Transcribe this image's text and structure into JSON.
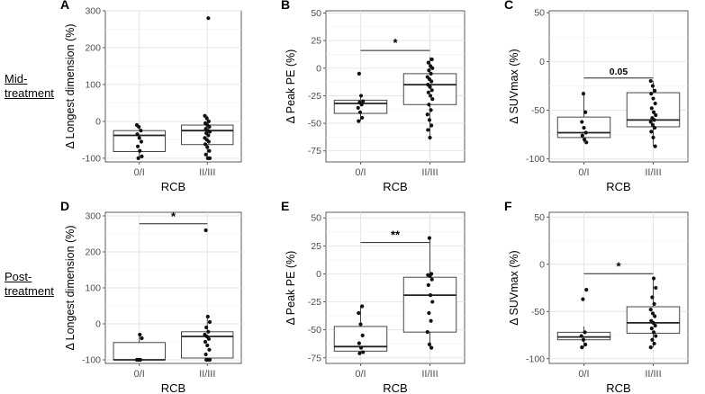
{
  "row_labels": {
    "mid_line1": "Mid-",
    "mid_line2": "treatment",
    "post_line1": "Post-",
    "post_line2": "treatment"
  },
  "chart_data": [
    {
      "id": "A",
      "type": "boxplot",
      "panel_label": "A",
      "ylabel": "Δ Longest dimension (%)",
      "xlabel": "RCB",
      "categories": [
        "0/I",
        "II/III"
      ],
      "ylim": [
        -110,
        300
      ],
      "yticks": [
        -100,
        0,
        100,
        200,
        300
      ],
      "boxes": [
        {
          "min": -100,
          "q1": -82,
          "median": -38,
          "q3": -25,
          "max": -10
        },
        {
          "min": -100,
          "q1": -63,
          "median": -25,
          "q3": -10,
          "max": 15
        }
      ],
      "points": [
        [
          -10,
          -15,
          -25,
          -35,
          -45,
          -55,
          -68,
          -80,
          -95,
          -100
        ],
        [
          280,
          15,
          8,
          0,
          -5,
          -10,
          -15,
          -20,
          -25,
          -28,
          -32,
          -38,
          -45,
          -50,
          -55,
          -62,
          -70,
          -80,
          -90,
          -100,
          -100
        ]
      ],
      "significance": null
    },
    {
      "id": "B",
      "type": "boxplot",
      "panel_label": "B",
      "ylabel": "Δ Peak PE (%)",
      "xlabel": "RCB",
      "categories": [
        "0/I",
        "II/III"
      ],
      "ylim": [
        -85,
        52
      ],
      "yticks": [
        -75,
        -50,
        -25,
        0,
        25,
        50
      ],
      "boxes": [
        {
          "min": -48,
          "q1": -41,
          "median": -32,
          "q3": -29,
          "max": -25
        },
        {
          "min": -63,
          "q1": -33,
          "median": -15,
          "q3": -5,
          "max": 10
        }
      ],
      "points": [
        [
          -5,
          -25,
          -30,
          -31,
          -33,
          -36,
          -40,
          -45,
          -48
        ],
        [
          8,
          5,
          2,
          0,
          -2,
          -5,
          -8,
          -10,
          -12,
          -15,
          -17,
          -20,
          -22,
          -25,
          -28,
          -33,
          -38,
          -42,
          -47,
          -52,
          -56,
          -63
        ]
      ],
      "significance": {
        "label": "*",
        "y": 16
      }
    },
    {
      "id": "C",
      "type": "boxplot",
      "panel_label": "C",
      "ylabel": "Δ SUVmax (%)",
      "xlabel": "RCB",
      "categories": [
        "0/I",
        "II/III"
      ],
      "ylim": [
        -103,
        52
      ],
      "yticks": [
        -100,
        -50,
        0,
        50
      ],
      "boxes": [
        {
          "min": -83,
          "q1": -78,
          "median": -73,
          "q3": -57,
          "max": -33
        },
        {
          "min": -87,
          "q1": -67,
          "median": -60,
          "q3": -32,
          "max": -20
        }
      ],
      "points": [
        [
          -33,
          -52,
          -62,
          -68,
          -73,
          -76,
          -80,
          -83
        ],
        [
          -20,
          -25,
          -30,
          -33,
          -38,
          -43,
          -48,
          -52,
          -55,
          -58,
          -60,
          -62,
          -65,
          -68,
          -72,
          -78,
          -87
        ]
      ],
      "significance": {
        "label": "0.05",
        "y": -17
      }
    },
    {
      "id": "D",
      "type": "boxplot",
      "panel_label": "D",
      "ylabel": "Δ Longest dimension (%)",
      "xlabel": "RCB",
      "categories": [
        "0/I",
        "II/III"
      ],
      "ylim": [
        -110,
        310
      ],
      "yticks": [
        -100,
        0,
        100,
        200,
        300
      ],
      "boxes": [
        {
          "min": -100,
          "q1": -100,
          "median": -100,
          "q3": -52,
          "max": -30
        },
        {
          "min": -100,
          "q1": -95,
          "median": -35,
          "q3": -22,
          "max": 20
        }
      ],
      "points": [
        [
          -30,
          -40,
          -100,
          -100,
          -100,
          -100
        ],
        [
          260,
          20,
          5,
          -10,
          -22,
          -30,
          -35,
          -42,
          -50,
          -60,
          -72,
          -85,
          -100,
          -100,
          -100
        ]
      ],
      "significance": {
        "label": "*",
        "y": 278
      }
    },
    {
      "id": "E",
      "type": "boxplot",
      "panel_label": "E",
      "ylabel": "Δ Peak PE (%)",
      "xlabel": "RCB",
      "categories": [
        "0/I",
        "II/III"
      ],
      "ylim": [
        -80,
        55
      ],
      "yticks": [
        -75,
        -50,
        -25,
        0,
        25,
        50
      ],
      "boxes": [
        {
          "min": -71,
          "q1": -69,
          "median": -65,
          "q3": -47,
          "max": -29
        },
        {
          "min": -66,
          "q1": -52,
          "median": -19,
          "q3": -3,
          "max": 32
        }
      ],
      "points": [
        [
          -29,
          -35,
          -45,
          -55,
          -62,
          -66,
          -70,
          -71
        ],
        [
          32,
          0,
          -1,
          -2,
          -5,
          -10,
          -19,
          -25,
          -35,
          -42,
          -52,
          -63,
          -66
        ]
      ],
      "significance": {
        "label": "**",
        "y": 28
      }
    },
    {
      "id": "F",
      "type": "boxplot",
      "panel_label": "F",
      "ylabel": "Δ SUVmax (%)",
      "xlabel": "RCB",
      "categories": [
        "0/I",
        "II/III"
      ],
      "ylim": [
        -105,
        55
      ],
      "yticks": [
        -100,
        -50,
        0,
        50
      ],
      "boxes": [
        {
          "min": -88,
          "q1": -80,
          "median": -77,
          "q3": -72,
          "max": -66
        },
        {
          "min": -88,
          "q1": -73,
          "median": -62,
          "q3": -45,
          "max": -15
        }
      ],
      "points": [
        [
          -27,
          -37,
          -72,
          -76,
          -80,
          -85,
          -88
        ],
        [
          -15,
          -25,
          -35,
          -42,
          -48,
          -52,
          -55,
          -60,
          -62,
          -65,
          -68,
          -72,
          -76,
          -80,
          -84,
          -88
        ]
      ],
      "significance": {
        "label": "*",
        "y": -10
      }
    }
  ]
}
